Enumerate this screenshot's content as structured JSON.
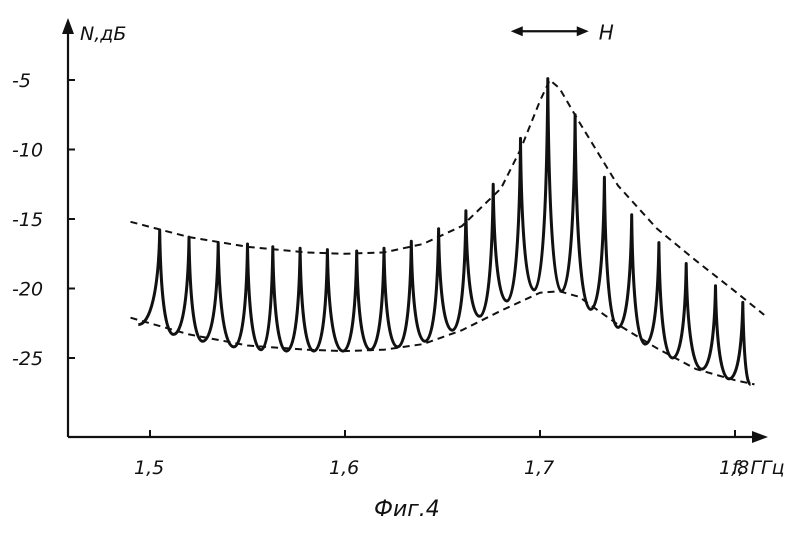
{
  "chart_data": {
    "type": "line",
    "title": "",
    "caption": "Фиг.4",
    "xlabel": "f, ГГц",
    "ylabel": "N,дБ",
    "xlim": [
      1.48,
      1.82
    ],
    "ylim": [
      -30,
      -1
    ],
    "x_ticks": [
      1.5,
      1.6,
      1.7,
      1.8
    ],
    "x_tick_labels": [
      "1,5",
      "1,6",
      "1,7",
      "1,8"
    ],
    "y_ticks": [
      -5,
      -10,
      -15,
      -20,
      -25
    ],
    "y_tick_labels": [
      "-5",
      "-10",
      "-15",
      "-20",
      "-25"
    ],
    "grid": false,
    "annotation": {
      "label": "H",
      "x_range": [
        1.685,
        1.725
      ],
      "y": -2.5
    },
    "series": [
      {
        "name": "",
        "style": "solid",
        "peaks_x": [
          1.505,
          1.52,
          1.535,
          1.55,
          1.563,
          1.577,
          1.591,
          1.606,
          1.62,
          1.634,
          1.648,
          1.662,
          1.676,
          1.69,
          1.704,
          1.718,
          1.733,
          1.747,
          1.761,
          1.775,
          1.79,
          1.804
        ],
        "peaks_y": [
          -15.8,
          -16.3,
          -16.7,
          -16.8,
          -17.0,
          -17.1,
          -17.2,
          -17.3,
          -17.1,
          -16.6,
          -15.7,
          -14.4,
          -12.5,
          -9.2,
          -4.9,
          -7.5,
          -12.0,
          -14.7,
          -16.7,
          -18.2,
          -19.8,
          -21.0
        ],
        "troughs_x": [
          1.494,
          1.512,
          1.527,
          1.543,
          1.557,
          1.57,
          1.584,
          1.599,
          1.613,
          1.627,
          1.641,
          1.655,
          1.669,
          1.683,
          1.697,
          1.711,
          1.726,
          1.74,
          1.754,
          1.768,
          1.783,
          1.797,
          1.808
        ],
        "troughs_y": [
          -22.6,
          -23.3,
          -23.8,
          -24.2,
          -24.4,
          -24.5,
          -24.5,
          -24.5,
          -24.4,
          -24.2,
          -23.8,
          -23.0,
          -22.0,
          -20.9,
          -20.1,
          -20.2,
          -21.5,
          -22.8,
          -24.0,
          -25.0,
          -25.8,
          -26.5,
          -26.9
        ]
      },
      {
        "name": "",
        "style": "dashed",
        "x": [
          1.49,
          1.52,
          1.55,
          1.58,
          1.6,
          1.62,
          1.64,
          1.66,
          1.68,
          1.69,
          1.7,
          1.705,
          1.71,
          1.72,
          1.74,
          1.76,
          1.78,
          1.8,
          1.815
        ],
        "values": [
          -15.2,
          -16.3,
          -17.0,
          -17.4,
          -17.5,
          -17.4,
          -16.8,
          -15.5,
          -12.8,
          -10.0,
          -6.5,
          -5.0,
          -5.6,
          -8.0,
          -12.6,
          -15.7,
          -18.0,
          -20.2,
          -21.9
        ]
      },
      {
        "name": "",
        "style": "dashed",
        "x": [
          1.49,
          1.52,
          1.55,
          1.58,
          1.6,
          1.62,
          1.64,
          1.66,
          1.68,
          1.7,
          1.71,
          1.72,
          1.74,
          1.76,
          1.78,
          1.8,
          1.81
        ],
        "values": [
          -22.1,
          -23.3,
          -24.1,
          -24.4,
          -24.5,
          -24.4,
          -24.0,
          -23.0,
          -21.6,
          -20.3,
          -20.2,
          -20.6,
          -22.6,
          -24.3,
          -25.8,
          -26.6,
          -26.9
        ]
      }
    ]
  }
}
